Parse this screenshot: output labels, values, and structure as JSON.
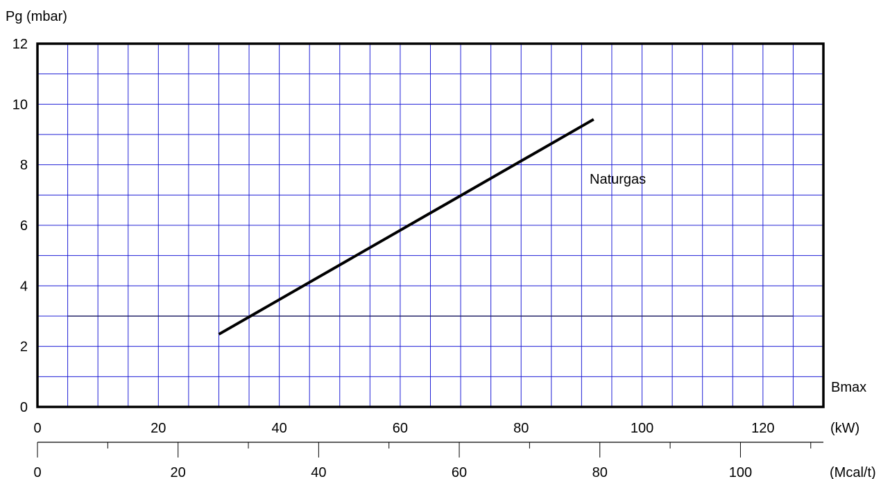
{
  "chart_data": {
    "type": "line",
    "ylabel": "Pg (mbar)",
    "ylim": [
      0,
      12
    ],
    "y_ticks": [
      "0",
      "2",
      "4",
      "6",
      "8",
      "10",
      "12"
    ],
    "xlim_kw": [
      0,
      130
    ],
    "x_ticks_kw": [
      "0",
      "20",
      "40",
      "60",
      "80",
      "100",
      "120"
    ],
    "x_unit_kw": "(kW)",
    "xlim_mcal": [
      0,
      111.8
    ],
    "x_ticks_mcal": [
      "0",
      "20",
      "40",
      "60",
      "80",
      "100"
    ],
    "x_unit_mcal": "(Mcal/t)",
    "xlabel": "Bmax",
    "grid": true,
    "grid_color": "#1f1fd6",
    "line_color": "#000000",
    "series": [
      {
        "name": "Naturgas",
        "x": [
          30,
          92
        ],
        "y": [
          2.4,
          9.5
        ]
      }
    ]
  }
}
